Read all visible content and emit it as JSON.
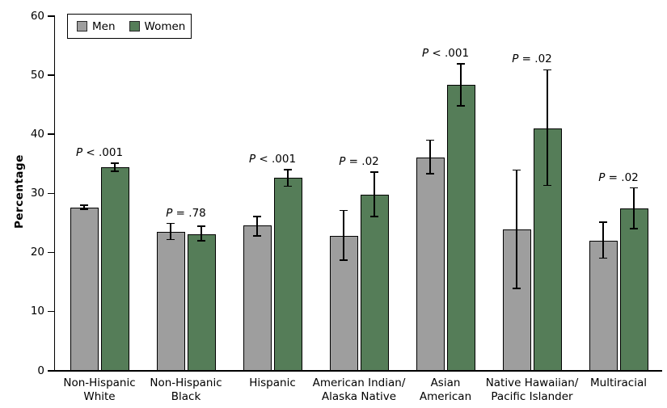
{
  "chart_data": {
    "type": "bar",
    "title": "",
    "xlabel": "",
    "ylabel": "Percentage",
    "ylim": [
      0,
      60
    ],
    "yticks": [
      0,
      10,
      20,
      30,
      40,
      50,
      60
    ],
    "grid": false,
    "legend_position": "top-left-inside-box",
    "categories": [
      "Non-Hispanic White",
      "Non-Hispanic Black",
      "Hispanic",
      "American Indian/Alaska Native",
      "Asian American",
      "Native Hawaiian/Pacific Islander",
      "Multiracial"
    ],
    "category_label_lines": [
      [
        "Non-Hispanic",
        "White"
      ],
      [
        "Non-Hispanic",
        "Black"
      ],
      [
        "Hispanic"
      ],
      [
        "American Indian/",
        "Alaska Native"
      ],
      [
        "Asian",
        "American"
      ],
      [
        "Native Hawaiian/",
        "Pacific Islander"
      ],
      [
        "Multiracial"
      ]
    ],
    "series": [
      {
        "name": "Men",
        "color": "#9e9e9e",
        "values": [
          27.5,
          23.4,
          24.4,
          22.7,
          36.0,
          23.8,
          21.9
        ],
        "ci_low": [
          27.2,
          22.1,
          22.7,
          18.6,
          33.2,
          13.8,
          18.9
        ],
        "ci_high": [
          27.9,
          24.8,
          26.0,
          27.0,
          38.9,
          33.8,
          25.0
        ]
      },
      {
        "name": "Women",
        "color": "#557d58",
        "values": [
          34.3,
          23.0,
          32.5,
          29.6,
          48.2,
          40.9,
          27.3
        ],
        "ci_low": [
          33.6,
          21.9,
          31.1,
          26.0,
          44.7,
          31.2,
          23.9
        ],
        "ci_high": [
          35.0,
          24.3,
          33.9,
          33.5,
          51.8,
          50.8,
          30.8
        ]
      }
    ],
    "p_labels": [
      "P < .001",
      "P = .78",
      "P < .001",
      "P = .02",
      "P < .001",
      "P = .02",
      "P = .02"
    ],
    "error_bars": true,
    "annotations_note": "P-value shown above each race/ethnicity group"
  }
}
